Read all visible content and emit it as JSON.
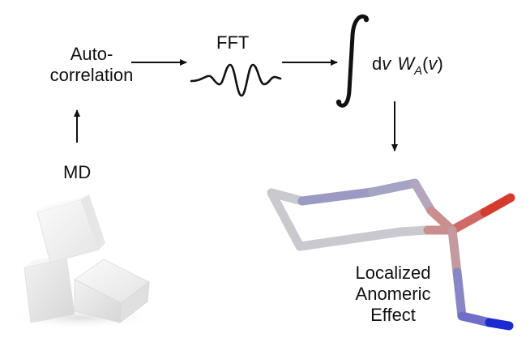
{
  "labels": {
    "autocorrelation_line1": "Auto-",
    "autocorrelation_line2": "correlation",
    "fft": "FFT",
    "integral_d": "d",
    "integral_nu": "v",
    "integral_w": "W",
    "integral_sub": "A",
    "integral_open": "(",
    "integral_nu2": "v",
    "integral_close": ")",
    "md": "MD",
    "effect_line1": "Localized",
    "effect_line2": "Anomeric",
    "effect_line3": "Effect"
  },
  "icons": {
    "wave": "fft-wave-icon",
    "integral": "integral-sign-icon",
    "sugar": "sugar-cubes-image",
    "molecule": "molecule-stick-model"
  },
  "colors": {
    "text": "#111111",
    "arrow": "#111111",
    "carbon": "#c9c9cf",
    "oxygen_ring": "#9a9ac2",
    "anomeric_carbon": "#c98f8f",
    "oxygen": "#d43a2e",
    "nitrogen": "#8a86c6",
    "nitrogen_dark": "#1c2ad0"
  }
}
